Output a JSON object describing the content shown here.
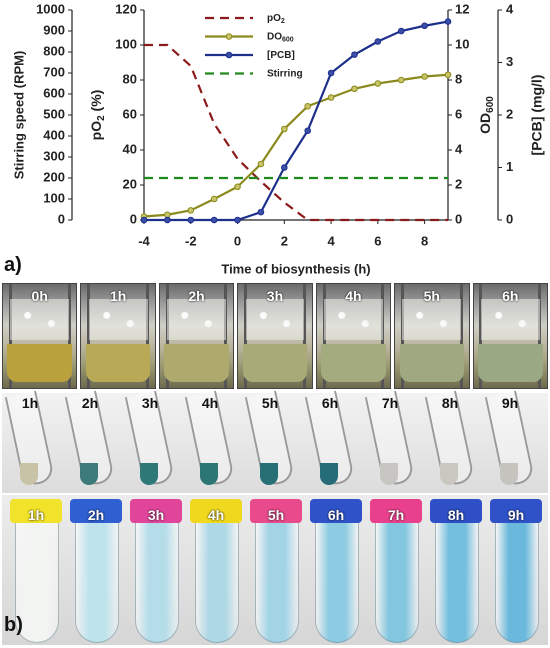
{
  "chart_data": {
    "type": "line",
    "xlabel": "Time of biosynthesis (h)",
    "xticks": [
      "-4",
      "-2",
      "0",
      "2",
      "4",
      "6",
      "8"
    ],
    "xlim": [
      -4,
      9
    ],
    "axes": {
      "stirring": {
        "label": "Stirring speed (RPM)",
        "lim": [
          0,
          1000
        ],
        "ticks": [
          "0",
          "100",
          "200",
          "300",
          "400",
          "500",
          "600",
          "700",
          "800",
          "900",
          "1000"
        ]
      },
      "po2": {
        "label": "pO",
        "label_sub": "2",
        "label_after": " (%)",
        "lim": [
          0,
          120
        ],
        "ticks": [
          "0",
          "20",
          "40",
          "60",
          "80",
          "100",
          "120"
        ]
      },
      "od": {
        "label": "OD",
        "label_sub": "600",
        "lim": [
          0,
          12
        ],
        "ticks": [
          "0",
          "2",
          "4",
          "6",
          "8",
          "10",
          "12"
        ]
      },
      "pcb": {
        "label": "[PCB] (mg/l)",
        "lim": [
          0,
          4
        ],
        "ticks": [
          "0",
          "1",
          "2",
          "3",
          "4"
        ]
      }
    },
    "series": [
      {
        "name": "pO",
        "name_sub": "2",
        "axis": "po2",
        "color": "#8b1a1a",
        "style": "dashed",
        "x": [
          -4,
          -3,
          -2,
          -1,
          0,
          1,
          2,
          3,
          4,
          5,
          6,
          7,
          8,
          9
        ],
        "y": [
          100,
          100,
          88,
          55,
          35,
          22,
          10,
          0,
          0,
          0,
          0,
          0,
          0,
          0
        ]
      },
      {
        "name": "DO",
        "name_sub": "600",
        "axis": "od",
        "color": "#8a8a1c",
        "style": "marker",
        "x": [
          -4,
          -3,
          -2,
          -1,
          0,
          1,
          2,
          3,
          4,
          5,
          6,
          7,
          8,
          9
        ],
        "y": [
          0.2,
          0.3,
          0.55,
          1.2,
          1.9,
          3.2,
          5.2,
          6.5,
          7.0,
          7.5,
          7.8,
          8.0,
          8.2,
          8.3
        ]
      },
      {
        "name": "[PCB]",
        "axis": "pcb",
        "color": "#1c2f8c",
        "style": "marker",
        "x": [
          -4,
          -3,
          -2,
          -1,
          0,
          1,
          2,
          3,
          4,
          5,
          6,
          7,
          8,
          9
        ],
        "y": [
          0,
          0,
          0,
          0,
          0,
          0.15,
          1.0,
          1.7,
          2.8,
          3.15,
          3.4,
          3.6,
          3.7,
          3.78
        ]
      },
      {
        "name": "Stirring",
        "axis": "stirring",
        "color": "#1e8a1e",
        "style": "dashed",
        "x": [
          -4,
          9
        ],
        "y": [
          200,
          200
        ]
      }
    ]
  },
  "panel_a": "a)",
  "panel_b": "b)",
  "row1": {
    "labels": [
      "0h",
      "1h",
      "2h",
      "3h",
      "4h",
      "5h",
      "6h"
    ],
    "liquid_colors": [
      "#b9a23e",
      "#b8a957",
      "#aeaa6e",
      "#a8ab78",
      "#a4ab7e",
      "#9ea982",
      "#9ba884"
    ]
  },
  "row2": {
    "labels": [
      "1h",
      "2h",
      "3h",
      "4h",
      "5h",
      "6h",
      "7h",
      "8h",
      "9h"
    ],
    "tip_colors": [
      "#c8c2a6",
      "#3d7a7a",
      "#2f7878",
      "#2c7676",
      "#276f74",
      "#256c78",
      "#c8c6c2",
      "#c9c7c0",
      "#c6c4be"
    ]
  },
  "row3": {
    "labels": [
      "1h",
      "2h",
      "3h",
      "4h",
      "5h",
      "6h",
      "7h",
      "8h",
      "9h"
    ],
    "cap_colors": [
      "#f1e22a",
      "#2f5fd0",
      "#e0459a",
      "#f0d81e",
      "#e84a8c",
      "#2f52c8",
      "#e8408c",
      "#2f4fc6",
      "#2f52c8"
    ],
    "fill_colors": [
      "#f2f4f2",
      "#bfe3ec",
      "#b5dde9",
      "#aed8e6",
      "#a3d4e6",
      "#8ccbe2",
      "#82c6df",
      "#74bfde",
      "#6ab9dc"
    ]
  }
}
